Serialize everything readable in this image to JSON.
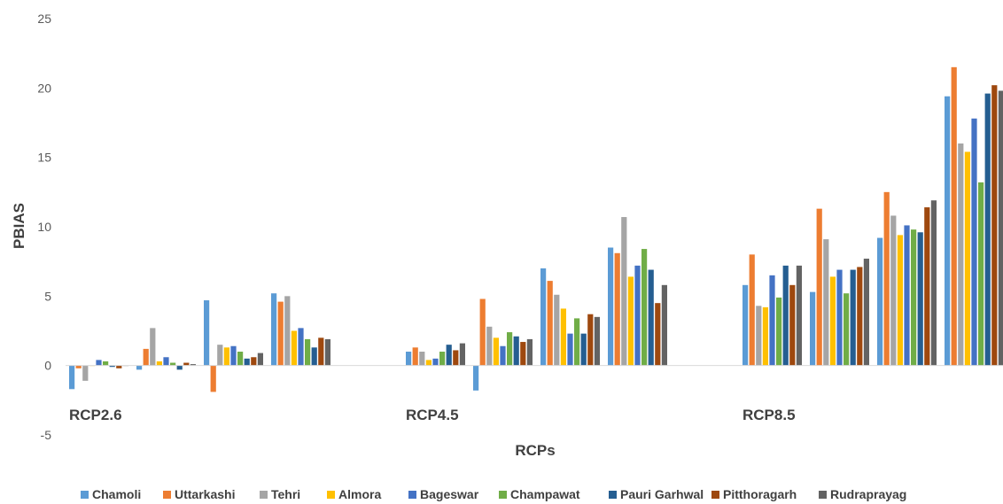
{
  "chart_data": {
    "type": "bar",
    "title": "",
    "xlabel": "RCPs",
    "ylabel": "PBIAS",
    "ylim": [
      -5,
      25
    ],
    "yticks": [
      -5,
      0,
      5,
      10,
      15,
      20,
      25
    ],
    "grid": false,
    "legend_position": "bottom",
    "group_labels": [
      "RCP2.6",
      "RCP4.5",
      "RCP8.5"
    ],
    "groups_per_label": 4,
    "series": [
      {
        "name": "Chamoli",
        "color": "#5B9BD5",
        "values": [
          -1.7,
          -0.3,
          4.7,
          5.2,
          1.0,
          -1.8,
          7.0,
          8.5,
          5.8,
          5.3,
          9.2,
          19.4
        ]
      },
      {
        "name": "Uttarkashi",
        "color": "#ED7D31",
        "values": [
          -0.2,
          1.2,
          -1.9,
          4.6,
          1.3,
          4.8,
          6.1,
          8.1,
          8.0,
          11.3,
          12.5,
          21.5
        ]
      },
      {
        "name": "Tehri",
        "color": "#A5A5A5",
        "values": [
          -1.1,
          2.7,
          1.5,
          5.0,
          1.0,
          2.8,
          5.1,
          10.7,
          4.3,
          9.1,
          10.8,
          16.0
        ]
      },
      {
        "name": "Almora",
        "color": "#FFC000",
        "values": [
          0.0,
          0.3,
          1.3,
          2.5,
          0.4,
          2.0,
          4.1,
          6.4,
          4.2,
          6.4,
          9.4,
          15.4
        ]
      },
      {
        "name": "Bageswar",
        "color": "#4472C4",
        "values": [
          0.4,
          0.6,
          1.4,
          2.7,
          0.5,
          1.4,
          2.3,
          7.2,
          6.5,
          6.9,
          10.1,
          17.8
        ]
      },
      {
        "name": "Champawat",
        "color": "#70AD47",
        "values": [
          0.3,
          0.2,
          1.0,
          1.9,
          1.0,
          2.4,
          3.4,
          8.4,
          4.9,
          5.2,
          9.8,
          13.2
        ]
      },
      {
        "name": "Pauri Garhwal",
        "color": "#255E91",
        "values": [
          -0.1,
          -0.3,
          0.5,
          1.3,
          1.5,
          2.1,
          2.3,
          6.9,
          7.2,
          6.9,
          9.6,
          19.6
        ]
      },
      {
        "name": "Pitthoragarh",
        "color": "#9E480E",
        "values": [
          -0.2,
          0.2,
          0.6,
          2.0,
          1.1,
          1.7,
          3.7,
          4.5,
          5.8,
          7.1,
          11.4,
          20.2
        ]
      },
      {
        "name": "Rudraprayag",
        "color": "#636363",
        "values": [
          0.0,
          0.1,
          0.9,
          1.9,
          1.6,
          1.9,
          3.5,
          5.8,
          7.2,
          7.7,
          11.9,
          19.8
        ]
      }
    ]
  }
}
